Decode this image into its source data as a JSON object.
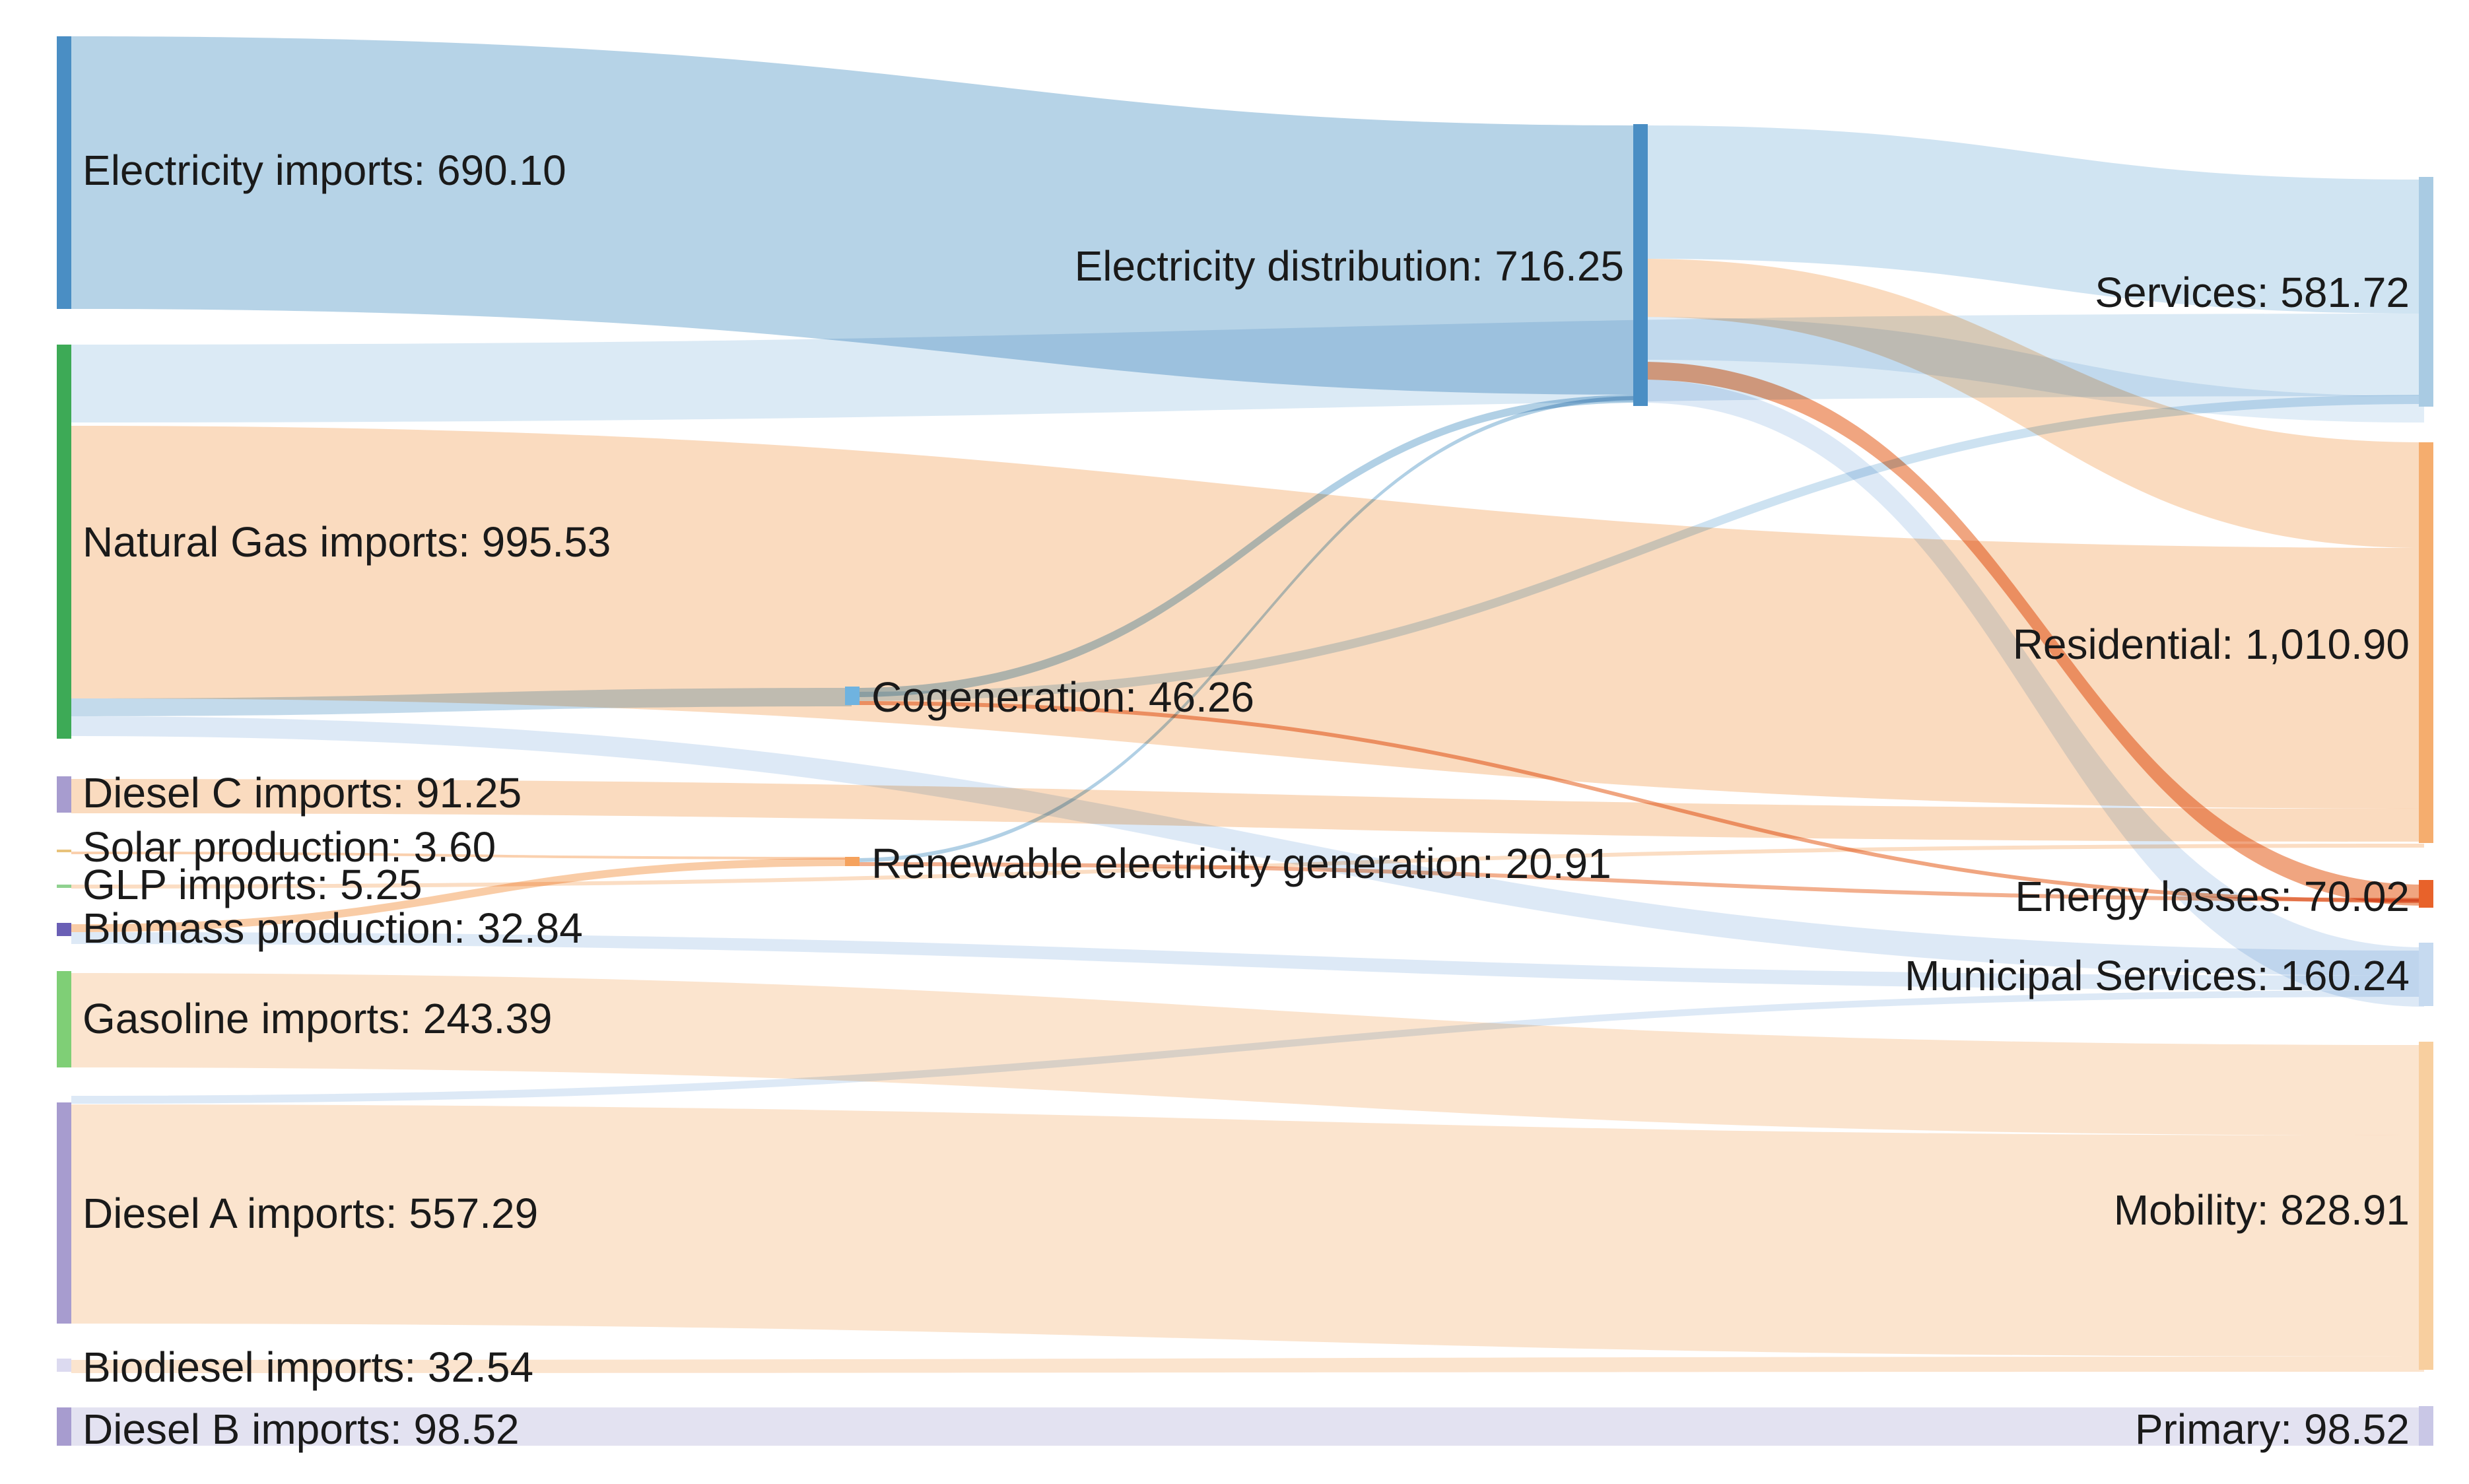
{
  "colors": {
    "electricity": "#4a8ec4",
    "electricity_link": "#a9cbe3",
    "electricity_link_light": "#c8dff0",
    "natural_gas": "#3daa56",
    "diesel_c": "#a79ccf",
    "solar": "#e8c27a",
    "glp": "#8fd18f",
    "biomass": "#6a5fb5",
    "gasoline": "#7fcf76",
    "diesel_a": "#a79ccf",
    "biodiesel": "#dcdaf0",
    "diesel_b": "#a79ccf",
    "cogeneration": "#6fb3e0",
    "renewable": "#f5a25d",
    "services": "#a9cbe3",
    "residential": "#f5ad6e",
    "energy_losses": "#e8622a",
    "municipal": "#c6daf0",
    "mobility": "#f8cf9f",
    "primary": "#c9c7e6",
    "orange_link": "#f9cfa9",
    "orange_link_light": "#fbe0c6",
    "losses_link": "#ef9b72",
    "primary_link": "#e2e1f1"
  },
  "nodes": {
    "electricity_imports": {
      "label": "Electricity imports: 690.10"
    },
    "natural_gas_imports": {
      "label": "Natural Gas imports: 995.53"
    },
    "diesel_c_imports": {
      "label": "Diesel C imports: 91.25"
    },
    "solar_production": {
      "label": "Solar production: 3.60"
    },
    "glp_imports": {
      "label": "GLP imports: 5.25"
    },
    "biomass_production": {
      "label": "Biomass production: 32.84"
    },
    "gasoline_imports": {
      "label": "Gasoline imports: 243.39"
    },
    "diesel_a_imports": {
      "label": "Diesel A imports: 557.29"
    },
    "biodiesel_imports": {
      "label": "Biodiesel imports: 32.54"
    },
    "diesel_b_imports": {
      "label": "Diesel B imports: 98.52"
    },
    "electricity_distribution": {
      "label": "Electricity distribution: 716.25"
    },
    "cogeneration": {
      "label": "Cogeneration: 46.26"
    },
    "renewable_generation": {
      "label": "Renewable electricity generation: 20.91"
    },
    "services": {
      "label": "Services: 581.72"
    },
    "residential": {
      "label": "Residential: 1,010.90"
    },
    "energy_losses": {
      "label": "Energy losses: 70.02"
    },
    "municipal_services": {
      "label": "Municipal Services: 160.24"
    },
    "mobility": {
      "label": "Mobility: 828.91"
    },
    "primary": {
      "label": "Primary: 98.52"
    }
  }
}
